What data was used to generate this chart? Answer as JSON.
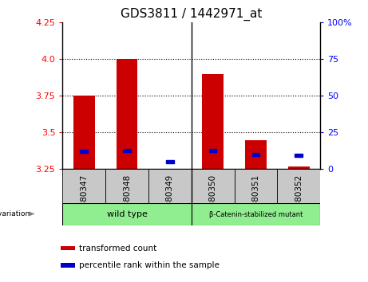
{
  "title": "GDS3811 / 1442971_at",
  "samples": [
    "GSM380347",
    "GSM380348",
    "GSM380349",
    "GSM380350",
    "GSM380351",
    "GSM380352"
  ],
  "red_values": [
    3.75,
    4.0,
    3.22,
    3.9,
    3.45,
    3.27
  ],
  "blue_values": [
    3.37,
    3.375,
    3.3,
    3.375,
    3.35,
    3.345
  ],
  "y_min": 3.25,
  "y_max": 4.25,
  "y_ticks_left": [
    3.25,
    3.5,
    3.75,
    4.0,
    4.25
  ],
  "y_ticks_right": [
    0,
    25,
    50,
    75,
    100
  ],
  "bar_bottom": 3.25,
  "bar_width": 0.5,
  "red_color": "#CC0000",
  "blue_color": "#0000CC",
  "bg_plot": "#FFFFFF",
  "bg_sample_row": "#C8C8C8",
  "bg_group_row": "#90EE90",
  "legend_red": "transformed count",
  "legend_blue": "percentile rank within the sample",
  "title_fontsize": 11,
  "tick_fontsize": 8,
  "label_fontsize": 8,
  "group_divider": 2.5
}
